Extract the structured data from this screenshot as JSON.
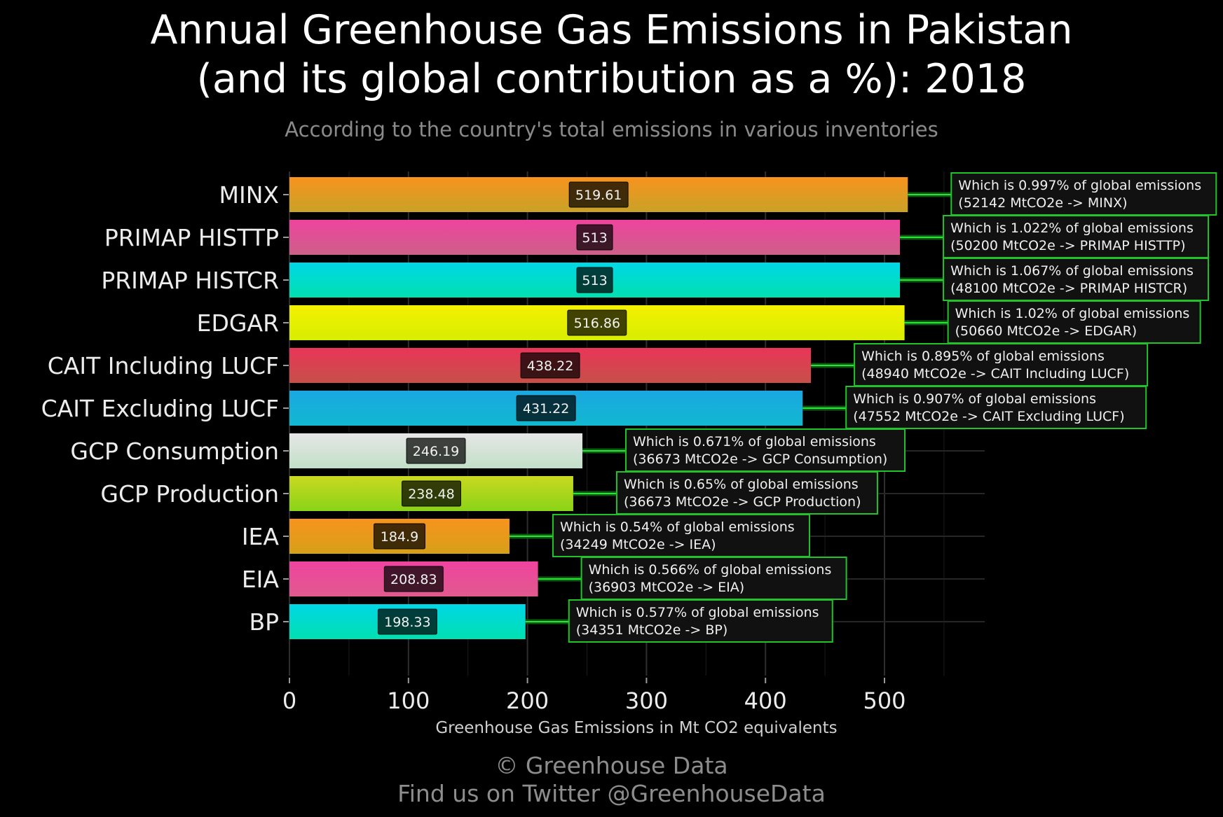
{
  "header": {
    "title_line1": "Annual Greenhouse Gas Emissions in Pakistan",
    "title_line2": "(and its global contribution as a %): 2018",
    "subtitle": "According to the country's total emissions in various inventories"
  },
  "chart_data": {
    "type": "bar",
    "orientation": "horizontal",
    "categories": [
      "MINX",
      "PRIMAP HISTTP",
      "PRIMAP HISTCR",
      "EDGAR",
      "CAIT Including LUCF",
      "CAIT Excluding LUCF",
      "GCP Consumption",
      "GCP Production",
      "IEA",
      "EIA",
      "BP"
    ],
    "values": [
      519.61,
      513,
      513,
      516.86,
      438.22,
      431.22,
      246.19,
      238.48,
      184.9,
      208.83,
      198.33
    ],
    "value_labels": [
      "519.61",
      "513",
      "513",
      "516.86",
      "438.22",
      "431.22",
      "246.19",
      "238.48",
      "184.9",
      "208.83",
      "198.33"
    ],
    "annotations": [
      {
        "line1": "Which is 0.997% of global emissions",
        "line2": "(52142 MtCO2e -> MINX)"
      },
      {
        "line1": "Which is 1.022% of global emissions",
        "line2": "(50200 MtCO2e -> PRIMAP HISTTP)"
      },
      {
        "line1": "Which is 1.067% of global emissions",
        "line2": "(48100 MtCO2e -> PRIMAP HISTCR)"
      },
      {
        "line1": "Which is 1.02% of global emissions",
        "line2": "(50660 MtCO2e -> EDGAR)"
      },
      {
        "line1": "Which is 0.895% of global emissions",
        "line2": "(48940 MtCO2e -> CAIT Including LUCF)"
      },
      {
        "line1": "Which is 0.907% of global emissions",
        "line2": "(47552 MtCO2e -> CAIT Excluding LUCF)"
      },
      {
        "line1": "Which is 0.671% of global emissions",
        "line2": "(36673 MtCO2e -> GCP Consumption)"
      },
      {
        "line1": "Which is 0.65% of global emissions",
        "line2": "(36673 MtCO2e -> GCP Production)"
      },
      {
        "line1": "Which is 0.54% of global emissions",
        "line2": "(34249 MtCO2e -> IEA)"
      },
      {
        "line1": "Which is 0.566% of global emissions",
        "line2": "(36903 MtCO2e -> EIA)"
      },
      {
        "line1": "Which is 0.577% of global emissions",
        "line2": "(34351 MtCO2e -> BP)"
      }
    ],
    "colors": [
      [
        "#f7931e",
        "#c9a227"
      ],
      [
        "#f0439f",
        "#cc6088"
      ],
      [
        "#00d7e6",
        "#00e0b0"
      ],
      [
        "#f3f000",
        "#d8ee00"
      ],
      [
        "#ea3558",
        "#c65048"
      ],
      [
        "#1aa7e2",
        "#12b8d0"
      ],
      [
        "#e6e6e6",
        "#c2e0c8"
      ],
      [
        "#c9d820",
        "#8ad418"
      ],
      [
        "#f7931e",
        "#d7a018"
      ],
      [
        "#f0439f",
        "#e05a8e"
      ],
      [
        "#00d7e6",
        "#00e0b0"
      ]
    ],
    "xlabel": "Greenhouse Gas Emissions in Mt CO2 equivalents",
    "xticks": [
      0,
      100,
      200,
      300,
      400,
      500
    ],
    "xlim": [
      0,
      590
    ],
    "grid": true,
    "annotation_border_color": "#22c22a"
  },
  "footer": {
    "line1": "© Greenhouse Data",
    "line2": "Find us on Twitter @GreenhouseData"
  }
}
